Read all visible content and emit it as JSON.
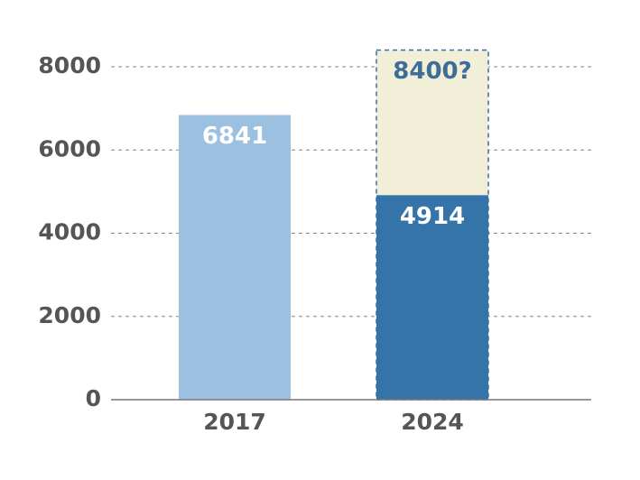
{
  "chart_data": {
    "type": "bar",
    "stacked": false,
    "categories": [
      "2017",
      "2024"
    ],
    "series": [
      {
        "colors": [
          "#9bc0e0",
          "#3474a8"
        ],
        "label_color": "#ffffff",
        "values": [
          6841,
          4914
        ]
      },
      {
        "color": "#f2efd9",
        "border_color": "#3c6e99",
        "border_style": "dashed",
        "label_color": "#3c6e99",
        "values": [
          null,
          8400
        ],
        "value_labels": [
          null,
          "8400?"
        ]
      }
    ],
    "ylim": [
      0,
      8600
    ],
    "yticks": [
      0,
      2000,
      4000,
      6000,
      8000
    ],
    "grid": true,
    "grid_style": "dashed"
  }
}
